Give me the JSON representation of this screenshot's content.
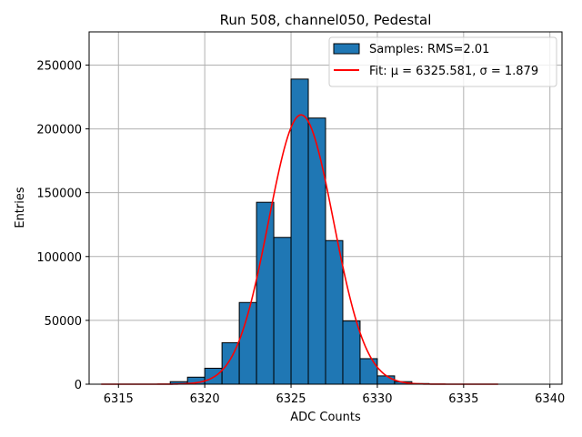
{
  "chart_data": {
    "type": "bar",
    "title": "Run 508, channel050, Pedestal",
    "xlabel": "ADC Counts",
    "ylabel": "Entries",
    "xlim": [
      6313.3,
      6340.7
    ],
    "ylim": [
      0,
      276000
    ],
    "xticks": [
      6315,
      6320,
      6325,
      6330,
      6335,
      6340
    ],
    "yticks": [
      0,
      50000,
      100000,
      150000,
      200000,
      250000
    ],
    "xtick_labels": [
      "6315",
      "6320",
      "6325",
      "6330",
      "6335",
      "6340"
    ],
    "ytick_labels": [
      "0",
      "50000",
      "100000",
      "150000",
      "200000",
      "250000"
    ],
    "grid": true,
    "legend_position": "top-right",
    "bin_width": 1,
    "bins": [
      {
        "x": 6318,
        "value": 2000
      },
      {
        "x": 6319,
        "value": 5500
      },
      {
        "x": 6320,
        "value": 12500
      },
      {
        "x": 6321,
        "value": 32500
      },
      {
        "x": 6322,
        "value": 64000
      },
      {
        "x": 6323,
        "value": 142500
      },
      {
        "x": 6324,
        "value": 115000
      },
      {
        "x": 6325,
        "value": 239000
      },
      {
        "x": 6326,
        "value": 208500
      },
      {
        "x": 6327,
        "value": 112500
      },
      {
        "x": 6328,
        "value": 49500
      },
      {
        "x": 6329,
        "value": 20000
      },
      {
        "x": 6330,
        "value": 6500
      },
      {
        "x": 6331,
        "value": 2000
      },
      {
        "x": 6332,
        "value": 500
      }
    ],
    "fit": {
      "type": "gaussian",
      "mu": 6325.581,
      "sigma": 1.879,
      "peak": 211000,
      "x_range": [
        6314,
        6337
      ]
    },
    "legend": [
      {
        "label": "Samples: RMS=2.01",
        "kind": "bar"
      },
      {
        "label": "Fit: μ = 6325.581, σ = 1.879",
        "kind": "line"
      }
    ],
    "colors": {
      "bar_fill": "#1f77b4",
      "bar_edge": "#000000",
      "fit_line": "#ff0000",
      "grid": "#b0b0b0"
    }
  }
}
